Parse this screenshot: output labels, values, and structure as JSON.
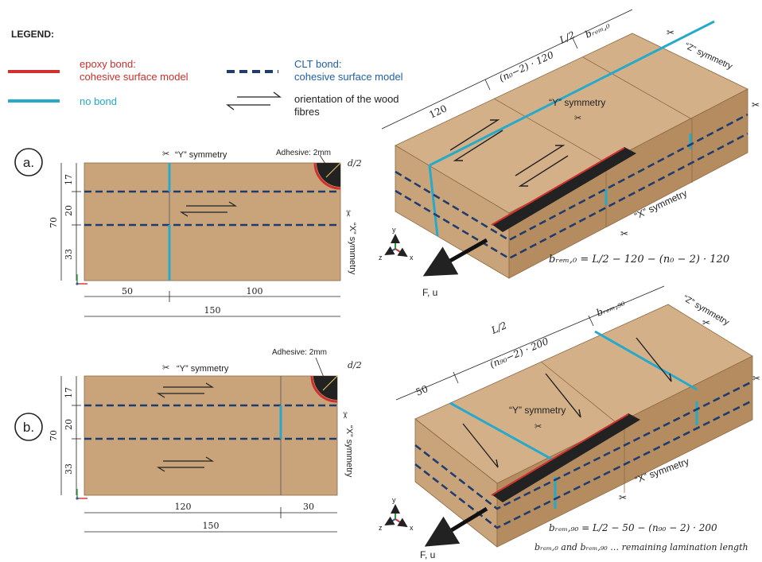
{
  "colors": {
    "wood": "#c9a47a",
    "wood_top": "#d4b089",
    "wood_side": "#b58c60",
    "epoxy": "#d0312d",
    "clt": "#1f3c6e",
    "nobond": "#27a9c9",
    "rod": "#222222",
    "text_red": "#c8302b",
    "text_blue": "#1f5fa8",
    "text_cyan": "#22a9cc"
  },
  "legend": {
    "title": "LEGEND:",
    "epoxy_line1": "epoxy bond:",
    "epoxy_line2": "cohesive surface model",
    "clt_line1": "CLT bond:",
    "clt_line2": "cohesive surface model",
    "nobond": "no bond",
    "fibres_line1": "orientation of the wood",
    "fibres_line2": "fibres"
  },
  "panel_a": {
    "label": "a.",
    "y_sym": "“Y” symmetry",
    "x_sym": "“X” symmetry",
    "adhesive": "Adhesive: 2mm",
    "d2": "d/2",
    "dims_v": [
      "17",
      "20",
      "33"
    ],
    "total_v": "70",
    "dim_h1": "50",
    "dim_h2": "100",
    "total_h": "150"
  },
  "panel_b": {
    "label": "b.",
    "y_sym": "“Y” symmetry",
    "x_sym": "“X” symmetry",
    "adhesive": "Adhesive: 2mm",
    "d2": "d/2",
    "dims_v": [
      "17",
      "20",
      "33"
    ],
    "total_v": "70",
    "dim_h1": "120",
    "dim_h2": "30",
    "total_h": "150"
  },
  "model_a": {
    "half_length": "L/2",
    "seg1": "120",
    "seg2": "(n₀−2) · 120",
    "b_rem": "bᵣₑₘ,₀",
    "z_sym": "“Z” symmetry",
    "y_sym": "“Y” symmetry",
    "x_sym": "“X” symmetry",
    "force": "F, u",
    "formula": "bᵣₑₘ,₀ = L/2 − 120 − (n₀ − 2) · 120"
  },
  "model_b": {
    "half_length": "L/2",
    "seg1": "50",
    "seg2": "(n₉₀−2) · 200",
    "b_rem": "bᵣₑₘ,₉₀",
    "z_sym": "“Z” symmetry",
    "y_sym": "“Y” symmetry",
    "x_sym": "“X” symmetry",
    "force": "F, u",
    "formula": "bᵣₑₘ,₉₀ = L/2 − 50 − (n₉₀ − 2) · 200",
    "note": "bᵣₑₘ,₀ and bᵣₑₘ,₉₀ … remaining lamination length"
  },
  "axes": {
    "x": "x",
    "y": "y",
    "z": "z"
  }
}
